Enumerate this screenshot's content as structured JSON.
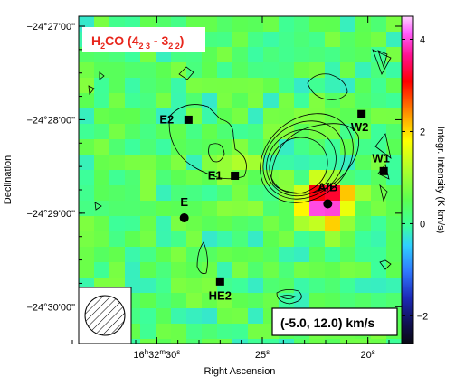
{
  "chart_data": {
    "type": "heatmap",
    "title": {
      "molecule_main": "H",
      "molecule_sub": "2",
      "molecule_rest": "CO (4",
      "upper_sub": "2 3",
      "sep": " - 3",
      "lower_sub": "2 2",
      "close": ")"
    },
    "xlabel": "Right Ascension",
    "ylabel": "Declination",
    "colorbar_label": "Integr. Intensity (K km/s)",
    "colorbar_range": [
      -2.6,
      4.5
    ],
    "colorbar_ticks": [
      {
        "value": -2,
        "label": "−2"
      },
      {
        "value": 0,
        "label": "0"
      },
      {
        "value": 2,
        "label": "2"
      },
      {
        "value": 4,
        "label": "4"
      }
    ],
    "x_ticks": [
      {
        "value": 0,
        "main": "16",
        "sup1": "h",
        "mid": "32",
        "sup2": "m",
        "end": "30",
        "sup3": "s"
      },
      {
        "value": 5,
        "main": "25",
        "sup1": "s",
        "mid": "",
        "sup2": "",
        "end": "",
        "sup3": ""
      },
      {
        "value": 10,
        "main": "20",
        "sup1": "s",
        "mid": "",
        "sup2": "",
        "end": "",
        "sup3": ""
      }
    ],
    "x_range_seconds_offset": [
      -3.7,
      11.6
    ],
    "y_ticks": [
      {
        "value": 0,
        "label": "−24°27'00\""
      },
      {
        "value": 1,
        "label": "−24°28'00\""
      },
      {
        "value": 2,
        "label": "−24°29'00\""
      },
      {
        "value": 3,
        "label": "−24°30'00\""
      }
    ],
    "y_range_arcmin_offset": [
      0,
      3.5
    ],
    "velocity_range": "(-5.0, 12.0) km/s",
    "peak_intensity": 4.2,
    "sources": [
      {
        "name": "E2",
        "ra": 1.5,
        "dec": 1.0,
        "marker": "square"
      },
      {
        "name": "E1",
        "ra": 3.7,
        "dec": 1.6,
        "marker": "square"
      },
      {
        "name": "E",
        "ra": 1.3,
        "dec": 2.05,
        "marker": "circle"
      },
      {
        "name": "HE2",
        "ra": 3.0,
        "dec": 2.73,
        "marker": "square"
      },
      {
        "name": "A/B",
        "ra": 8.1,
        "dec": 1.9,
        "marker": "circle"
      },
      {
        "name": "W2",
        "ra": 9.7,
        "dec": 0.94,
        "marker": "square"
      },
      {
        "name": "W1",
        "ra": 10.75,
        "dec": 1.55,
        "marker": "square"
      }
    ]
  }
}
